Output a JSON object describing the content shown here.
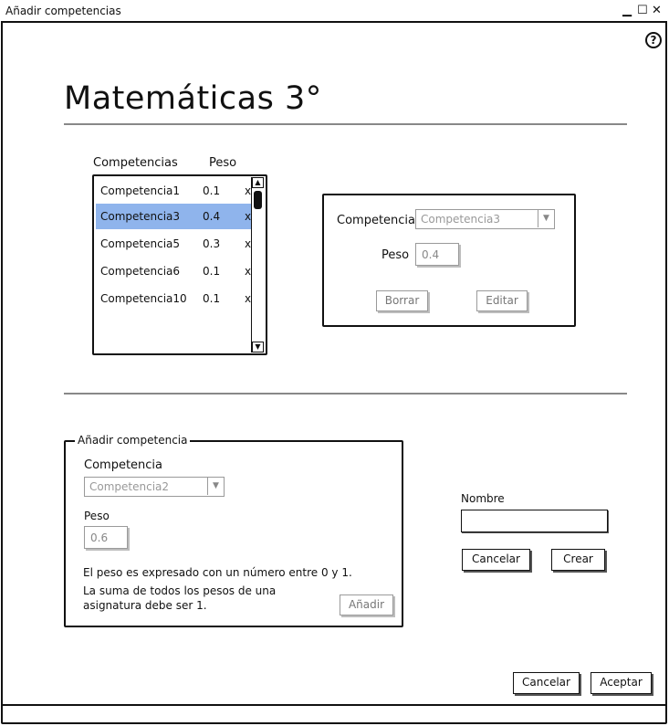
{
  "window": {
    "title": "Añadir competencias",
    "controls": [
      "▁",
      "☐",
      "✕"
    ]
  },
  "help_icon": "?",
  "page_title": "Matemáticas 3°",
  "list": {
    "header_name": "Competencias",
    "header_weight": "Peso",
    "rows": [
      {
        "name": "Competencia1",
        "weight": "0.1",
        "delete": "x",
        "selected": false
      },
      {
        "name": "Competencia3",
        "weight": "0.4",
        "delete": "x",
        "selected": true
      },
      {
        "name": "Competencia5",
        "weight": "0.3",
        "delete": "x",
        "selected": false
      },
      {
        "name": "Competencia6",
        "weight": "0.1",
        "delete": "x",
        "selected": false
      },
      {
        "name": "Competencia10",
        "weight": "0.1",
        "delete": "x",
        "selected": false
      }
    ]
  },
  "edit_panel": {
    "competencia_label": "Competencia",
    "competencia_value": "Competencia3",
    "peso_label": "Peso",
    "peso_value": "0.4",
    "delete_label": "Borrar",
    "edit_label": "Editar"
  },
  "add_panel": {
    "title": "Añadir competencia",
    "competencia_label": "Competencia",
    "competencia_value": "Competencia2",
    "peso_label": "Peso",
    "peso_value": "0.6",
    "hint1": "El peso es expresado con un número entre 0 y 1.",
    "hint2_line1": "La suma de todos los pesos de una",
    "hint2_line2": "asignatura debe ser 1.",
    "add_label": "Añadir"
  },
  "create_panel": {
    "name_label": "Nombre",
    "name_value": "",
    "cancel_label": "Cancelar",
    "create_label": "Crear"
  },
  "footer": {
    "cancel_label": "Cancelar",
    "accept_label": "Aceptar"
  }
}
